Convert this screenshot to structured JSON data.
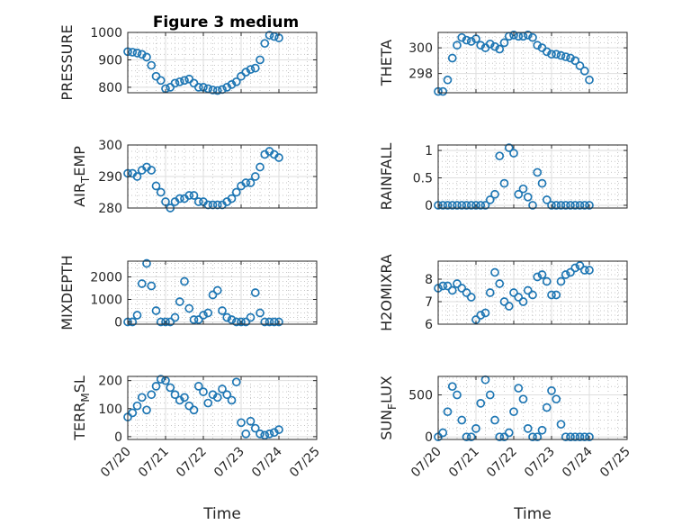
{
  "figure": {
    "title": "Figure 3 medium"
  },
  "colors": {
    "marker": "#1f77b4",
    "axis": "#262626"
  },
  "chart_data": [
    {
      "type": "scatter",
      "ylabel": "PRESSURE",
      "ylim": [
        780,
        1000
      ],
      "yticks": [
        800,
        900,
        1000
      ],
      "ytick_labels": [
        "800",
        "900",
        "1000"
      ],
      "xlim": [
        "07/20",
        "07/25"
      ],
      "grid": true,
      "x": [
        "07/20 00:00",
        "07/20 03:00",
        "07/20 06:00",
        "07/20 09:00",
        "07/20 12:00",
        "07/20 15:00",
        "07/20 18:00",
        "07/20 21:00",
        "07/21 00:00",
        "07/21 03:00",
        "07/21 06:00",
        "07/21 09:00",
        "07/21 12:00",
        "07/21 15:00",
        "07/21 18:00",
        "07/21 21:00",
        "07/22 00:00",
        "07/22 03:00",
        "07/22 06:00",
        "07/22 09:00",
        "07/22 12:00",
        "07/22 15:00",
        "07/22 18:00",
        "07/22 21:00",
        "07/23 00:00",
        "07/23 03:00",
        "07/23 06:00",
        "07/23 09:00",
        "07/23 12:00",
        "07/23 15:00",
        "07/23 18:00",
        "07/23 21:00",
        "07/24 00:00"
      ],
      "values": [
        930,
        928,
        925,
        920,
        910,
        880,
        840,
        825,
        795,
        800,
        815,
        820,
        825,
        830,
        815,
        800,
        800,
        795,
        790,
        788,
        792,
        800,
        810,
        820,
        840,
        855,
        865,
        870,
        900,
        960,
        990,
        985,
        980
      ],
      "show_xtick_labels": false
    },
    {
      "type": "scatter",
      "ylabel": "THETA",
      "ylim": [
        296.5,
        301.2
      ],
      "yticks": [
        298,
        300
      ],
      "ytick_labels": [
        "298",
        "300"
      ],
      "xlim": [
        "07/20",
        "07/25"
      ],
      "grid": true,
      "x": [
        "07/20 00:00",
        "07/20 03:00",
        "07/20 06:00",
        "07/20 09:00",
        "07/20 12:00",
        "07/20 15:00",
        "07/20 18:00",
        "07/20 21:00",
        "07/21 00:00",
        "07/21 03:00",
        "07/21 06:00",
        "07/21 09:00",
        "07/21 12:00",
        "07/21 15:00",
        "07/21 18:00",
        "07/21 21:00",
        "07/22 00:00",
        "07/22 03:00",
        "07/22 06:00",
        "07/22 09:00",
        "07/22 12:00",
        "07/22 15:00",
        "07/22 18:00",
        "07/22 21:00",
        "07/23 00:00",
        "07/23 03:00",
        "07/23 06:00",
        "07/23 09:00",
        "07/23 12:00",
        "07/23 15:00",
        "07/23 18:00",
        "07/23 21:00",
        "07/24 00:00"
      ],
      "values": [
        296.6,
        296.6,
        297.5,
        299.2,
        300.2,
        300.8,
        300.6,
        300.5,
        300.7,
        300.2,
        300.0,
        300.3,
        300.1,
        299.9,
        300.4,
        300.9,
        301.0,
        300.9,
        300.9,
        301.0,
        300.8,
        300.2,
        300.0,
        299.7,
        299.5,
        299.5,
        299.4,
        299.3,
        299.2,
        299.0,
        298.6,
        298.2,
        297.5
      ],
      "show_xtick_labels": false
    },
    {
      "type": "scatter",
      "ylabel": "AIR_TEMP",
      "ylabel_parts": [
        "AIR",
        "T",
        "EMP"
      ],
      "ylim": [
        280,
        300
      ],
      "yticks": [
        280,
        290,
        300
      ],
      "ytick_labels": [
        "280",
        "290",
        "300"
      ],
      "xlim": [
        "07/20",
        "07/25"
      ],
      "grid": true,
      "x": [
        "07/20 00:00",
        "07/20 03:00",
        "07/20 06:00",
        "07/20 09:00",
        "07/20 12:00",
        "07/20 15:00",
        "07/20 18:00",
        "07/20 21:00",
        "07/21 00:00",
        "07/21 03:00",
        "07/21 06:00",
        "07/21 09:00",
        "07/21 12:00",
        "07/21 15:00",
        "07/21 18:00",
        "07/21 21:00",
        "07/22 00:00",
        "07/22 03:00",
        "07/22 06:00",
        "07/22 09:00",
        "07/22 12:00",
        "07/22 15:00",
        "07/22 18:00",
        "07/22 21:00",
        "07/23 00:00",
        "07/23 03:00",
        "07/23 06:00",
        "07/23 09:00",
        "07/23 12:00",
        "07/23 15:00",
        "07/23 18:00",
        "07/23 21:00",
        "07/24 00:00"
      ],
      "values": [
        291,
        291,
        290,
        292,
        293,
        292,
        287,
        285,
        282,
        280,
        282,
        283,
        283,
        284,
        284,
        282,
        282,
        281,
        281,
        281,
        281,
        282,
        283,
        285,
        287,
        288,
        288,
        290,
        293,
        297,
        298,
        297,
        296
      ],
      "show_xtick_labels": false
    },
    {
      "type": "scatter",
      "ylabel": "RAINFALL",
      "ylim": [
        -0.05,
        1.1
      ],
      "yticks": [
        0,
        0.5,
        1
      ],
      "ytick_labels": [
        "0",
        "0.5",
        "1"
      ],
      "xlim": [
        "07/20",
        "07/25"
      ],
      "grid": true,
      "x": [
        "07/20 00:00",
        "07/20 03:00",
        "07/20 06:00",
        "07/20 09:00",
        "07/20 12:00",
        "07/20 15:00",
        "07/20 18:00",
        "07/20 21:00",
        "07/21 00:00",
        "07/21 03:00",
        "07/21 06:00",
        "07/21 09:00",
        "07/21 12:00",
        "07/21 15:00",
        "07/21 18:00",
        "07/21 21:00",
        "07/22 00:00",
        "07/22 03:00",
        "07/22 06:00",
        "07/22 09:00",
        "07/22 12:00",
        "07/22 15:00",
        "07/22 18:00",
        "07/22 21:00",
        "07/23 00:00",
        "07/23 03:00",
        "07/23 06:00",
        "07/23 09:00",
        "07/23 12:00",
        "07/23 15:00",
        "07/23 18:00",
        "07/23 21:00",
        "07/24 00:00"
      ],
      "values": [
        0,
        0,
        0,
        0,
        0,
        0,
        0,
        0,
        0,
        0,
        0,
        0.1,
        0.2,
        0.9,
        0.4,
        1.05,
        0.95,
        0.2,
        0.3,
        0.15,
        0,
        0.6,
        0.4,
        0.1,
        0,
        0,
        0,
        0,
        0,
        0,
        0,
        0,
        0
      ],
      "show_xtick_labels": false
    },
    {
      "type": "scatter",
      "ylabel": "MIXDEPTH",
      "ylim": [
        -100,
        2700
      ],
      "yticks": [
        0,
        1000,
        2000
      ],
      "ytick_labels": [
        "0",
        "1000",
        "2000"
      ],
      "xlim": [
        "07/20",
        "07/25"
      ],
      "grid": true,
      "x": [
        "07/20 00:00",
        "07/20 03:00",
        "07/20 06:00",
        "07/20 09:00",
        "07/20 12:00",
        "07/20 15:00",
        "07/20 18:00",
        "07/20 21:00",
        "07/21 00:00",
        "07/21 03:00",
        "07/21 06:00",
        "07/21 09:00",
        "07/21 12:00",
        "07/21 15:00",
        "07/21 18:00",
        "07/21 21:00",
        "07/22 00:00",
        "07/22 03:00",
        "07/22 06:00",
        "07/22 09:00",
        "07/22 12:00",
        "07/22 15:00",
        "07/22 18:00",
        "07/22 21:00",
        "07/23 00:00",
        "07/23 03:00",
        "07/23 06:00",
        "07/23 09:00",
        "07/23 12:00",
        "07/23 15:00",
        "07/23 18:00",
        "07/23 21:00",
        "07/24 00:00"
      ],
      "values": [
        0,
        0,
        300,
        1700,
        2600,
        1600,
        500,
        0,
        0,
        0,
        200,
        900,
        1800,
        600,
        100,
        100,
        300,
        400,
        1200,
        1400,
        500,
        200,
        100,
        0,
        0,
        0,
        200,
        1300,
        400,
        0,
        0,
        0,
        0
      ],
      "show_xtick_labels": false
    },
    {
      "type": "scatter",
      "ylabel": "H2OMIXRA",
      "ylim": [
        6,
        8.8
      ],
      "yticks": [
        6,
        7,
        8
      ],
      "ytick_labels": [
        "6",
        "7",
        "8"
      ],
      "xlim": [
        "07/20",
        "07/25"
      ],
      "grid": true,
      "x": [
        "07/20 00:00",
        "07/20 03:00",
        "07/20 06:00",
        "07/20 09:00",
        "07/20 12:00",
        "07/20 15:00",
        "07/20 18:00",
        "07/20 21:00",
        "07/21 00:00",
        "07/21 03:00",
        "07/21 06:00",
        "07/21 09:00",
        "07/21 12:00",
        "07/21 15:00",
        "07/21 18:00",
        "07/21 21:00",
        "07/22 00:00",
        "07/22 03:00",
        "07/22 06:00",
        "07/22 09:00",
        "07/22 12:00",
        "07/22 15:00",
        "07/22 18:00",
        "07/22 21:00",
        "07/23 00:00",
        "07/23 03:00",
        "07/23 06:00",
        "07/23 09:00",
        "07/23 12:00",
        "07/23 15:00",
        "07/23 18:00",
        "07/23 21:00",
        "07/24 00:00"
      ],
      "values": [
        7.6,
        7.7,
        7.7,
        7.5,
        7.8,
        7.6,
        7.4,
        7.2,
        6.2,
        6.4,
        6.5,
        7.4,
        8.3,
        7.8,
        7.0,
        6.8,
        7.4,
        7.2,
        7.0,
        7.5,
        7.3,
        8.1,
        8.2,
        7.9,
        7.3,
        7.3,
        7.9,
        8.2,
        8.3,
        8.5,
        8.6,
        8.4,
        8.4
      ],
      "show_xtick_labels": false
    },
    {
      "type": "scatter",
      "ylabel": "TERR_MSL",
      "ylabel_parts": [
        "TERR",
        "M",
        "SL"
      ],
      "ylim": [
        -10,
        215
      ],
      "yticks": [
        0,
        100,
        200
      ],
      "ytick_labels": [
        "0",
        "100",
        "200"
      ],
      "xlim": [
        "07/20",
        "07/25"
      ],
      "xticks": [
        "07/20",
        "07/21",
        "07/22",
        "07/23",
        "07/24",
        "07/25"
      ],
      "xlabel": "Time",
      "grid": true,
      "x": [
        "07/20 00:00",
        "07/20 03:00",
        "07/20 06:00",
        "07/20 09:00",
        "07/20 12:00",
        "07/20 15:00",
        "07/20 18:00",
        "07/20 21:00",
        "07/21 00:00",
        "07/21 03:00",
        "07/21 06:00",
        "07/21 09:00",
        "07/21 12:00",
        "07/21 15:00",
        "07/21 18:00",
        "07/21 21:00",
        "07/22 00:00",
        "07/22 03:00",
        "07/22 06:00",
        "07/22 09:00",
        "07/22 12:00",
        "07/22 15:00",
        "07/22 18:00",
        "07/22 21:00",
        "07/23 00:00",
        "07/23 03:00",
        "07/23 06:00",
        "07/23 09:00",
        "07/23 12:00",
        "07/23 15:00",
        "07/23 18:00",
        "07/23 21:00",
        "07/24 00:00"
      ],
      "values": [
        70,
        85,
        110,
        140,
        95,
        150,
        180,
        205,
        200,
        175,
        150,
        130,
        140,
        110,
        95,
        180,
        160,
        120,
        150,
        140,
        170,
        150,
        130,
        195,
        50,
        10,
        55,
        30,
        10,
        5,
        10,
        15,
        25
      ],
      "show_xtick_labels": true
    },
    {
      "type": "scatter",
      "ylabel": "SUN_FLUX",
      "ylabel_parts": [
        "SUN",
        "F",
        "LUX"
      ],
      "ylim": [
        -30,
        720
      ],
      "yticks": [
        0,
        500
      ],
      "ytick_labels": [
        "0",
        "500"
      ],
      "xlim": [
        "07/20",
        "07/25"
      ],
      "xticks": [
        "07/20",
        "07/21",
        "07/22",
        "07/23",
        "07/24",
        "07/25"
      ],
      "xlabel": "Time",
      "grid": true,
      "x": [
        "07/20 00:00",
        "07/20 03:00",
        "07/20 06:00",
        "07/20 09:00",
        "07/20 12:00",
        "07/20 15:00",
        "07/20 18:00",
        "07/20 21:00",
        "07/21 00:00",
        "07/21 03:00",
        "07/21 06:00",
        "07/21 09:00",
        "07/21 12:00",
        "07/21 15:00",
        "07/21 18:00",
        "07/21 21:00",
        "07/22 00:00",
        "07/22 03:00",
        "07/22 06:00",
        "07/22 09:00",
        "07/22 12:00",
        "07/22 15:00",
        "07/22 18:00",
        "07/22 21:00",
        "07/23 00:00",
        "07/23 03:00",
        "07/23 06:00",
        "07/23 09:00",
        "07/23 12:00",
        "07/23 15:00",
        "07/23 18:00",
        "07/23 21:00",
        "07/24 00:00"
      ],
      "values": [
        0,
        50,
        300,
        600,
        500,
        200,
        0,
        0,
        100,
        400,
        680,
        500,
        200,
        0,
        0,
        50,
        300,
        580,
        450,
        100,
        0,
        0,
        80,
        350,
        550,
        450,
        150,
        0,
        0,
        0,
        0,
        0,
        0
      ],
      "show_xtick_labels": true
    }
  ]
}
